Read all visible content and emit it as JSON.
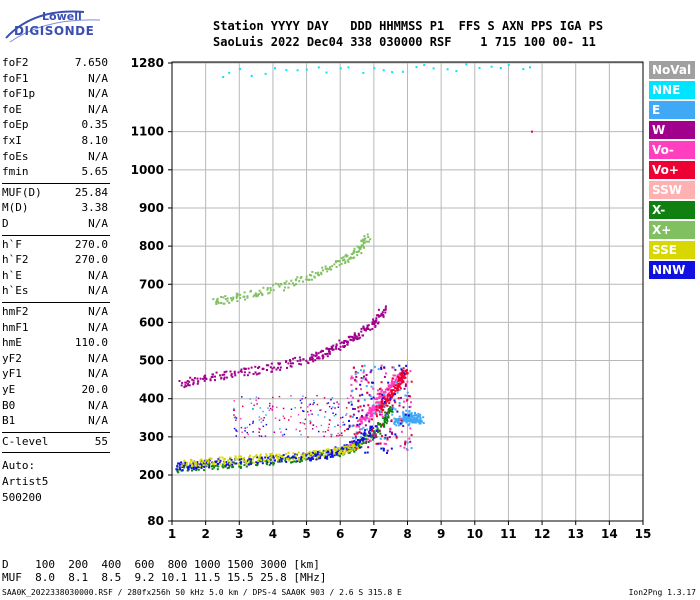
{
  "logo": {
    "top": "Lowell",
    "bottom": "DIGISONDE"
  },
  "header": {
    "line1": "Station YYYY DAY   DDD HHMMSS P1  FFS S AXN PPS IGA PS",
    "line2": "SaoLuis 2022 Dec04 338 030000 RSF    1 715 100 00- 11"
  },
  "params": {
    "group1": [
      {
        "label": "foF2",
        "value": "7.650"
      },
      {
        "label": "foF1",
        "value": "N/A"
      },
      {
        "label": "foF1p",
        "value": "N/A"
      },
      {
        "label": "foE",
        "value": "N/A"
      },
      {
        "label": "foEp",
        "value": "0.35"
      },
      {
        "label": "fxI",
        "value": "8.10"
      },
      {
        "label": "foEs",
        "value": "N/A"
      },
      {
        "label": "fmin",
        "value": "5.65"
      }
    ],
    "group2": [
      {
        "label": "MUF(D)",
        "value": "25.84"
      },
      {
        "label": "M(D)",
        "value": "3.38"
      },
      {
        "label": "D",
        "value": "N/A"
      }
    ],
    "group3": [
      {
        "label": "h`F",
        "value": "270.0"
      },
      {
        "label": "h`F2",
        "value": "270.0"
      },
      {
        "label": "h`E",
        "value": "N/A"
      },
      {
        "label": "h`Es",
        "value": "N/A"
      }
    ],
    "group4": [
      {
        "label": "hmF2",
        "value": "N/A"
      },
      {
        "label": "hmF1",
        "value": "N/A"
      },
      {
        "label": "hmE",
        "value": "110.0"
      },
      {
        "label": "yF2",
        "value": "N/A"
      },
      {
        "label": "yF1",
        "value": "N/A"
      },
      {
        "label": "yE",
        "value": "20.0"
      },
      {
        "label": "B0",
        "value": "N/A"
      },
      {
        "label": "B1",
        "value": "N/A"
      }
    ],
    "group5": [
      {
        "label": "C-level",
        "value": "55"
      }
    ],
    "auto": [
      "Auto:",
      "Artist5",
      "500200"
    ]
  },
  "legend": [
    {
      "label": "NoVal",
      "color": "#a0a0a0"
    },
    {
      "label": "NNE",
      "color": "#00e5ff"
    },
    {
      "label": "E",
      "color": "#3fa9f5"
    },
    {
      "label": "W",
      "color": "#a0008c"
    },
    {
      "label": "Vo-",
      "color": "#ff3fbf"
    },
    {
      "label": "Vo+",
      "color": "#ee0033"
    },
    {
      "label": "SSW",
      "color": "#ffb0b0"
    },
    {
      "label": "X-",
      "color": "#108010"
    },
    {
      "label": "X+",
      "color": "#80c060"
    },
    {
      "label": "SSE",
      "color": "#d8d800"
    },
    {
      "label": "NNW",
      "color": "#1010e0"
    }
  ],
  "chart_data": {
    "type": "scatter",
    "xlim": [
      1,
      15
    ],
    "ylim": [
      80,
      1280
    ],
    "x_ticks": [
      1,
      2,
      3,
      4,
      5,
      6,
      7,
      8,
      9,
      10,
      11,
      12,
      13,
      14,
      15
    ],
    "y_ticks": [
      80,
      200,
      300,
      400,
      500,
      600,
      700,
      800,
      900,
      1000,
      1100,
      1280
    ],
    "grid": true,
    "traces": [
      {
        "name": "X-",
        "points": [
          [
            1.1,
            220
          ],
          [
            2,
            225
          ],
          [
            3,
            232
          ],
          [
            4,
            240
          ],
          [
            5,
            250
          ],
          [
            6,
            262
          ],
          [
            6.5,
            278
          ],
          [
            7,
            310
          ],
          [
            7.3,
            345
          ],
          [
            7.5,
            380
          ]
        ]
      },
      {
        "name": "NNW",
        "points": [
          [
            1.1,
            225
          ],
          [
            1.6,
            228
          ],
          [
            2,
            232
          ],
          [
            3,
            238
          ],
          [
            4,
            242
          ],
          [
            5,
            250
          ],
          [
            5.5,
            255
          ],
          [
            6,
            268
          ],
          [
            6.5,
            290
          ],
          [
            7,
            330
          ]
        ]
      },
      {
        "name": "SSE",
        "points": [
          [
            1.3,
            232
          ],
          [
            2,
            236
          ],
          [
            3,
            242
          ],
          [
            4,
            248
          ],
          [
            5,
            255
          ],
          [
            6,
            265
          ],
          [
            6.5,
            280
          ]
        ]
      },
      {
        "name": "W",
        "points": [
          [
            1.2,
            440
          ],
          [
            2,
            455
          ],
          [
            3,
            470
          ],
          [
            4,
            485
          ],
          [
            5,
            505
          ],
          [
            5.5,
            520
          ],
          [
            6,
            545
          ],
          [
            6.5,
            570
          ],
          [
            7,
            600
          ],
          [
            7.3,
            640
          ]
        ]
      },
      {
        "name": "Vo-",
        "points": [
          [
            6.5,
            330
          ],
          [
            6.8,
            360
          ],
          [
            7,
            380
          ],
          [
            7.2,
            410
          ],
          [
            7.5,
            440
          ],
          [
            7.7,
            460
          ]
        ]
      },
      {
        "name": "Vo+",
        "points": [
          [
            7.1,
            370
          ],
          [
            7.3,
            395
          ],
          [
            7.5,
            415
          ],
          [
            7.7,
            440
          ],
          [
            7.8,
            460
          ],
          [
            7.9,
            480
          ]
        ]
      },
      {
        "name": "E",
        "points": [
          [
            7.6,
            340
          ],
          [
            7.8,
            350
          ],
          [
            8,
            355
          ],
          [
            8.2,
            350
          ],
          [
            8.4,
            345
          ],
          [
            7.9,
            365
          ],
          [
            8.1,
            335
          ]
        ]
      },
      {
        "name": "X+",
        "points": [
          [
            2.2,
            655
          ],
          [
            3,
            670
          ],
          [
            4,
            690
          ],
          [
            5,
            720
          ],
          [
            6,
            760
          ],
          [
            6.5,
            790
          ],
          [
            6.8,
            830
          ]
        ]
      },
      {
        "name": "NNE",
        "points": [
          [
            11.7,
            1275
          ],
          [
            2.1,
            1255
          ]
        ]
      },
      {
        "name": "Vo+",
        "points": [
          [
            11.7,
            1100
          ]
        ]
      }
    ]
  },
  "footer": {
    "line1": "D    100  200  400  600  800 1000 1500 3000 [km]",
    "line2": "MUF  8.0  8.1  8.5  9.2 10.1 11.5 15.5 25.8 [MHz]",
    "line3": "SAA0K_2022338030000.RSF / 280fx256h 50 kHz 5.0 km / DPS-4 SAA0K 903 / 2.6 S 315.8 E",
    "line4": "Ion2Png 1.3.17"
  }
}
